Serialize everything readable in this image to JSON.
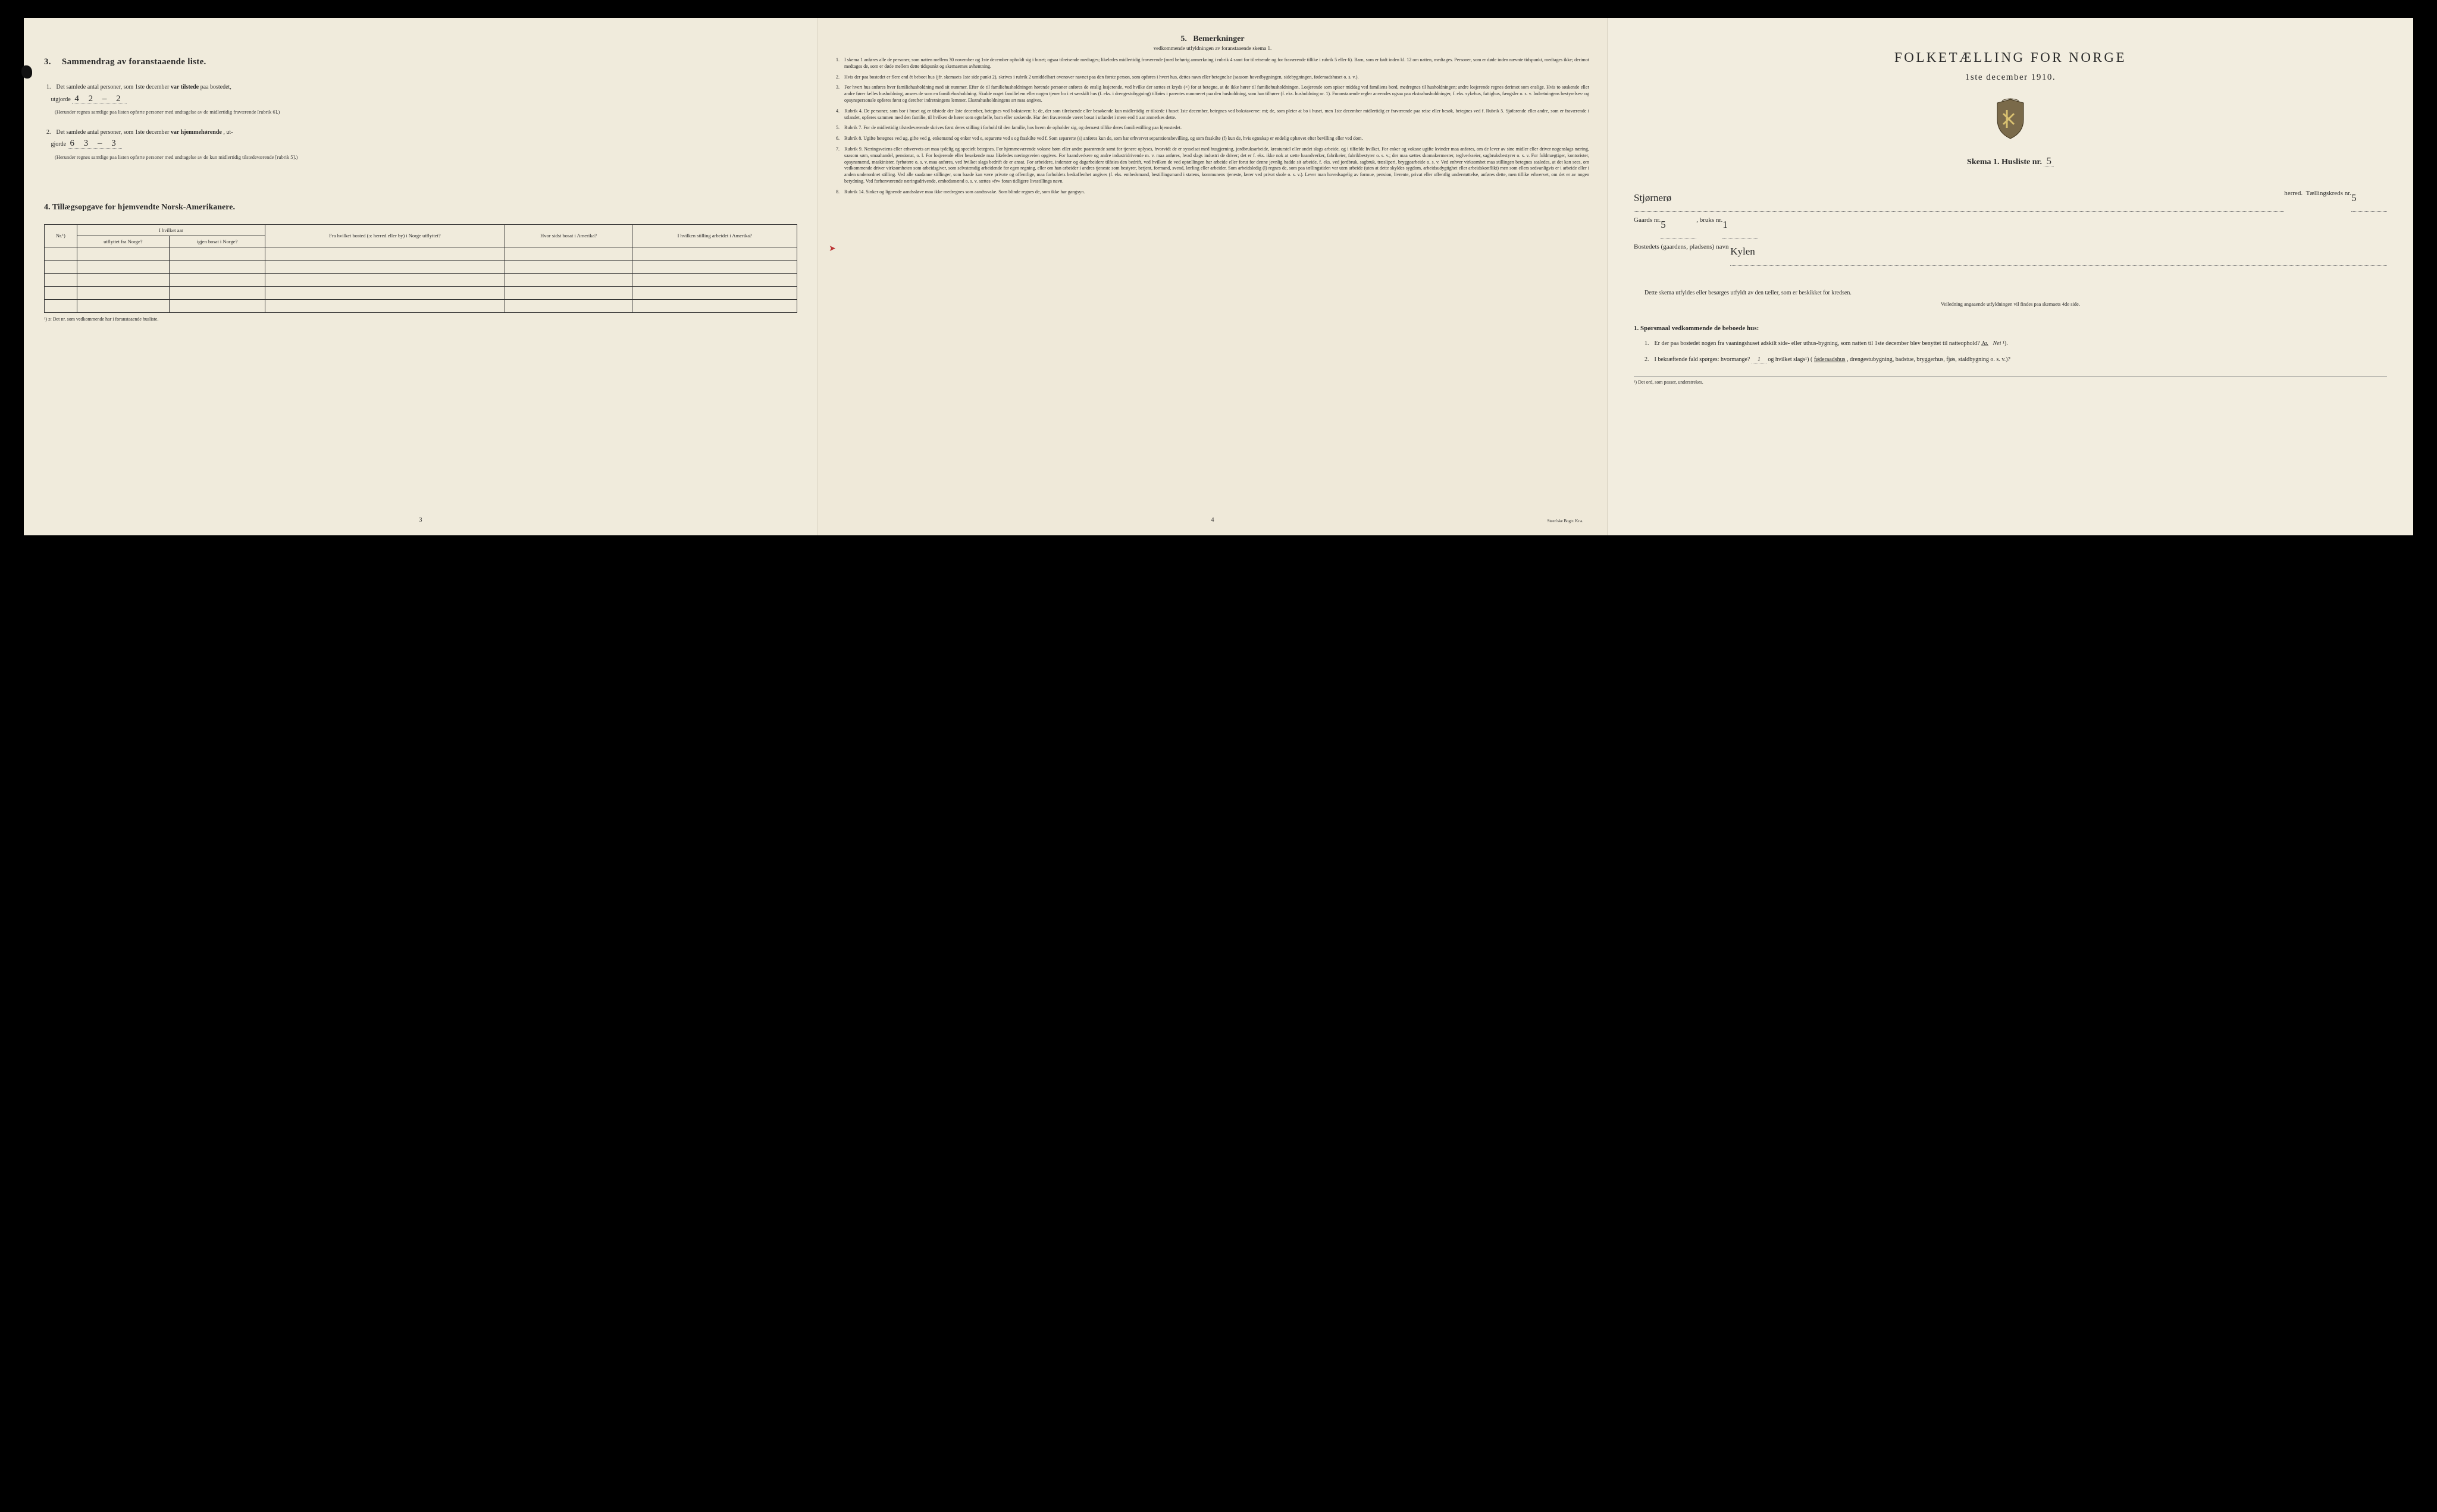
{
  "colors": {
    "paper": "#f0ebdc",
    "ink": "#2a2a2a",
    "border": "#333333",
    "bg": "#000000",
    "red": "#b33333"
  },
  "left": {
    "section3": {
      "num": "3.",
      "title": "Sammendrag av foranstaaende liste.",
      "items": [
        {
          "idx": "1.",
          "pre": "Det samlede antal personer, som 1ste december ",
          "bold": "var tilstede",
          "post": " paa bostedet,",
          "line2_label": "utgjorde",
          "hand": "4   2 – 2",
          "fine": "(Herunder regnes samtlige paa listen opførte personer med undtagelse av de midlertidig fraværende [rubrik 6].)"
        },
        {
          "idx": "2.",
          "pre": "Det samlede antal personer, som 1ste december ",
          "bold": "var hjemmehørende",
          "post": ", ut-",
          "line2_label": "gjorde",
          "hand": "6   3 – 3",
          "fine": "(Herunder regnes samtlige paa listen opførte personer med undtagelse av de kun midlertidig tilstedeværende [rubrik 5].)"
        }
      ]
    },
    "section4": {
      "num": "4.",
      "title": "Tillægsopgave for hjemvendte Norsk-Amerikanere.",
      "headers": {
        "c0": "Nr.¹)",
        "c1a": "I hvilket aar",
        "c1b_left": "utflyttet fra Norge?",
        "c1b_right": "igjen bosat i Norge?",
        "c2": "Fra hvilket bosted (ɔ: herred eller by) i Norge utflyttet?",
        "c3": "Hvor sidst bosat i Amerika?",
        "c4": "I hvilken stilling arbeidet i Amerika?"
      },
      "rows": 5,
      "footnote": "¹) ɔ: Det nr. som vedkommende har i foranstaaende husliste."
    },
    "pagenum": "3"
  },
  "mid": {
    "title_num": "5.",
    "title": "Bemerkninger",
    "subtitle": "vedkommende utfyldningen av foranstaaende skema 1.",
    "items": [
      {
        "n": "1.",
        "t": "I skema 1 anføres alle de personer, som natten mellem 30 november og 1ste december opholdt sig i huset; ogsaa tilreisende medtages; likeledes midlertidig fraværende (med behørig anmerkning i rubrik 4 samt for tilreisende og for fraværende tillike i rubrik 5 eller 6). Barn, som er født inden kl. 12 om natten, medtages. Personer, som er døde inden nævnte tidspunkt, medtages ikke; derimot medtages de, som er døde mellem dette tidspunkt og skemaernes avhentning."
      },
      {
        "n": "2.",
        "t": "Hvis der paa bostedet er flere end ét beboet hus (jfr. skemaets 1ste side punkt 2), skrives i rubrik 2 umiddelbart ovenover navnet paa den første person, som opføres i hvert hus, dettes navn eller betegnelse (saasom hovedbygningen, sidebygningen, føderaadshuset o. s. v.)."
      },
      {
        "n": "3.",
        "t": "For hvert hus anføres hver familiehusholdning med sit nummer. Efter de til familiehusholdningen hørende personer anføres de enslig losjerende, ved hvilke der sættes et kryds (×) for at betegne, at de ikke hører til familiehusholdningen. Losjerende som spiser middag ved familiens bord, medregnes til husholdningen; andre losjerende regnes derimot som enslige. Hvis to søskende eller andre fører fælles husholdning, ansees de som en familiehusholdning. Skulde noget familielem eller nogen tjener bo i et særskilt hus (f. eks. i drengestubygning) tilføies i parentes nummeret paa den husholdning, som han tilhører (f. eks. husholdning nr. 1). Foranstaaende regler anvendes ogsaa paa ekstrahusholdninger, f. eks. sykehus, fattighus, fængsler o. s. v. Indretningens bestyrelses- og opsynspersonale opføres først og derefter indretningens lemmer. Ekstrahusholdningens art maa angives."
      },
      {
        "n": "4.",
        "t": "Rubrik 4. De personer, som bor i huset og er tilstede der 1ste december, betegnes ved bokstaven: b; de, der som tilreisende eller besøkende kun midlertidig er tilstede i huset 1ste december, betegnes ved bokstaverne: mt; de, som pleier at bo i huset, men 1ste december midlertidig er fraværende paa reise eller besøk, betegnes ved f. Rubrik 5. Sjøfarende eller andre, som er fraværende i utlandet, opføres sammen med den familie, til hvilken de hører som egtefælle, barn eller søskende. Har den fraværende været bosat i utlandet i mere end 1 aar anmerkes dette."
      },
      {
        "n": "5.",
        "t": "Rubrik 7. For de midlertidig tilstedeværende skrives først deres stilling i forhold til den familie, hos hvem de opholder sig, og dernæst tillike deres familiestilling paa hjemstedet."
      },
      {
        "n": "6.",
        "t": "Rubrik 8. Ugifte betegnes ved ug, gifte ved g, enkemænd og enker ved e, separerte ved s og fraskilte ved f. Som separerte (s) anføres kun de, som har erhvervet separationsbevilling, og som fraskilte (f) kun de, hvis egteskap er endelig ophævet efter bevilling eller ved dom."
      },
      {
        "n": "7.",
        "t": "Rubrik 9. Næringsveiens eller erhvervets art maa tydelig og specielt betegnes. For hjemmeværende voksne børn eller andre paarørende samt for tjenere oplyses, hvorvidt de er sysselsat med husgjerning, jordbruksarbeide, kreaturstel eller andet slags arbeide, og i tilfælde hvilket. For enker og voksne ugifte kvinder maa anføres, om de lever av sine midler eller driver nogenslags næring, saasom søm, smaahandel, pensionat, o. l. For losjerende eller besøkende maa likeledes næringsveien opgives. For haandverkere og andre industridrivende m. v. maa anføres, hvad slags industri de driver; det er f. eks. ikke nok at sætte haandverker, fabrikeier, fabrikbestyrer o. s. v.; der maa sættes skomakermester, teglverkseier, sagbruksbestyrer o. s. v. For fuldmægtiger, kontorister, opsynsmænd, maskinister, fyrbøtere o. s. v. maa anføres, ved hvilket slags bedrift de er ansat. For arbeidere, inderster og dagarbeidere tilføies den bedrift, ved hvilken de ved optællingen har arbeide eller forut for denne jevnlig hadde sit arbeide, f. eks. ved jordbruk, sagbruk, træsliperi, bryggearbeide o. s. v. Ved enhver virksomhet maa stillingen betegnes saaledes, at det kan sees, om vedkommende driver virksomheten som arbeidsgiver, som selvstændig arbeidende for egen regning, eller om han arbeider i andres tjeneste som bestyrer, betjent, formand, svend, lærling eller arbeider. Som arbeidsledig (l) regnes de, som paa tællingstiden var uten arbeide (uten at dette skyldes sygdom, arbeidsudygtighet eller arbeidskonflikt) men som ellers sedvanligvis er i arbeide eller i anden underordnet stilling. Ved alle saadanne stillinger, som baade kan være private og offentlige, maa forholdets beskaffenhet angives (f. eks. embedsmand, bestillingsmand i statens, kommunens tjeneste, lærer ved privat skole o. s. v.). Lever man hovedsagelig av formue, pension, livrente, privat eller offentlig understøttelse, anføres dette, men tillike erhvervet, om det er av nogen betydning. Ved forhenværende næringsdrivende, embedsmænd o. s. v. sættes «fv» foran tidligere livsstillings navn."
      },
      {
        "n": "8.",
        "t": "Rubrik 14. Sinker og lignende aandssløve maa ikke medregnes som aandssvake. Som blinde regnes de, som ikke har gangsyn."
      }
    ],
    "pagenum": "4",
    "printer": "Steen'ske Bogtr. Kr.a."
  },
  "right": {
    "bigtitle": "FOLKETÆLLING FOR NORGE",
    "date": "1ste december 1910.",
    "skema_label": "Skema 1.  Husliste nr.",
    "skema_hand": "5",
    "fields": {
      "herred_hand": "Stjørnerø",
      "herred_label": "herred.",
      "kreds_label": "Tællingskreds nr.",
      "kreds_hand": "5",
      "gaard_label": "Gaards nr.",
      "gaard_hand": "5",
      "bruk_label": ", bruks nr.",
      "bruk_hand": "1",
      "bosted_label": "Bostedets (gaardens, pladsens) navn",
      "bosted_hand": "Kylen"
    },
    "instr": "Dette skema utfyldes eller besørges utfyldt av den tæller, som er beskikket for kredsen.",
    "instr2": "Veiledning angaaende utfyldningen vil findes paa skemaets 4de side.",
    "q_header_num": "1.",
    "q_header": "Spørsmaal vedkommende de beboede hus:",
    "qs": [
      {
        "qi": "1.",
        "text": "Er der paa bostedet nogen fra vaaningshuset adskilt side- eller uthus-bygning, som natten til 1ste december blev benyttet til natteophold?  ",
        "ja": "Ja.",
        "nei": "Nei",
        "sup": "¹)."
      },
      {
        "qi": "2.",
        "text": "I bekræftende fald spørges: hvormange? ",
        "hand": "1",
        "text2": " og hvilket slags¹) (",
        "under": "føderaadshus",
        "text3": ", drengestubygning, badstue, bryggerhus, fjøs, staldbygning o. s. v.)?"
      }
    ],
    "footnote": "¹) Det ord, som passer, understrekes."
  }
}
